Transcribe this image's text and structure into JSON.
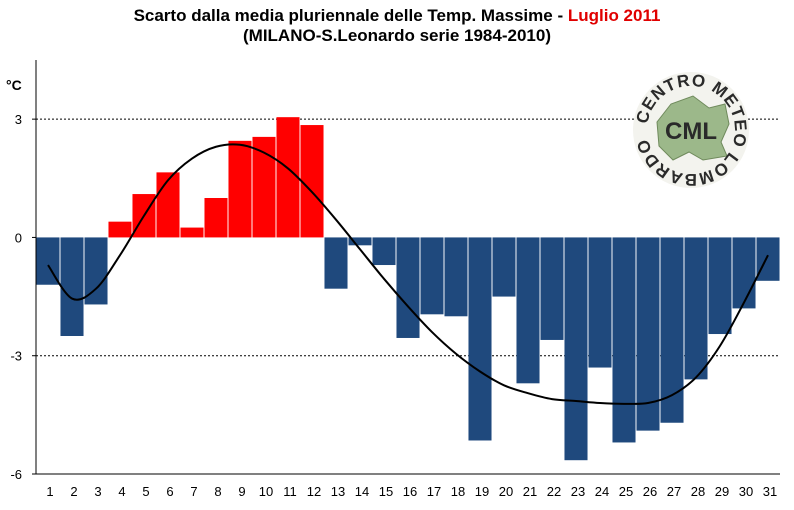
{
  "title": {
    "line1_prefix": "Scarto dalla media pluriennale delle Temp. Massime - ",
    "line1_highlight": "Luglio 2011",
    "line2": "(MILANO-S.Leonardo serie 1984-2010)"
  },
  "logo": {
    "ring_text": "CENTRO METEO LOMBARDO",
    "center_text": "CML"
  },
  "colors": {
    "positive": "#ff0000",
    "negative": "#1f497d",
    "title_highlight": "#e00000",
    "trend": "#000000"
  },
  "chart_data": {
    "type": "bar",
    "ylabel": "°C",
    "ylim": [
      -6,
      4.5
    ],
    "yticks": [
      -6,
      -3,
      0,
      3
    ],
    "dashed_gridlines": [
      3,
      -3
    ],
    "categories": [
      "1",
      "2",
      "3",
      "4",
      "5",
      "6",
      "7",
      "8",
      "9",
      "10",
      "11",
      "12",
      "13",
      "14",
      "15",
      "16",
      "17",
      "18",
      "19",
      "20",
      "21",
      "22",
      "23",
      "24",
      "25",
      "26",
      "27",
      "28",
      "29",
      "30",
      "31"
    ],
    "values": [
      -1.2,
      -2.5,
      -1.7,
      0.4,
      1.1,
      1.65,
      0.25,
      1.0,
      2.45,
      2.55,
      3.05,
      2.85,
      -1.3,
      -0.2,
      -0.7,
      -2.55,
      -1.95,
      -2.0,
      -5.15,
      -1.5,
      -3.7,
      -2.6,
      -5.65,
      -3.3,
      -5.2,
      -4.9,
      -4.7,
      -3.6,
      -2.45,
      -1.8,
      -1.1
    ],
    "trend": {
      "type": "polynomial",
      "x": [
        1,
        2,
        3,
        4,
        5,
        6,
        7,
        8,
        9,
        10,
        11,
        12,
        13,
        14,
        15,
        16,
        17,
        18,
        19,
        20,
        21,
        22,
        23,
        24,
        25,
        26,
        27,
        28,
        29,
        30,
        31
      ],
      "y": [
        -0.7,
        -1.55,
        -1.3,
        -0.45,
        0.55,
        1.45,
        2.0,
        2.3,
        2.35,
        2.15,
        1.75,
        1.15,
        0.45,
        -0.3,
        -1.05,
        -1.75,
        -2.4,
        -2.95,
        -3.4,
        -3.75,
        -3.95,
        -4.1,
        -4.15,
        -4.2,
        -4.22,
        -4.2,
        -4.0,
        -3.55,
        -2.75,
        -1.65,
        -0.45
      ]
    }
  }
}
